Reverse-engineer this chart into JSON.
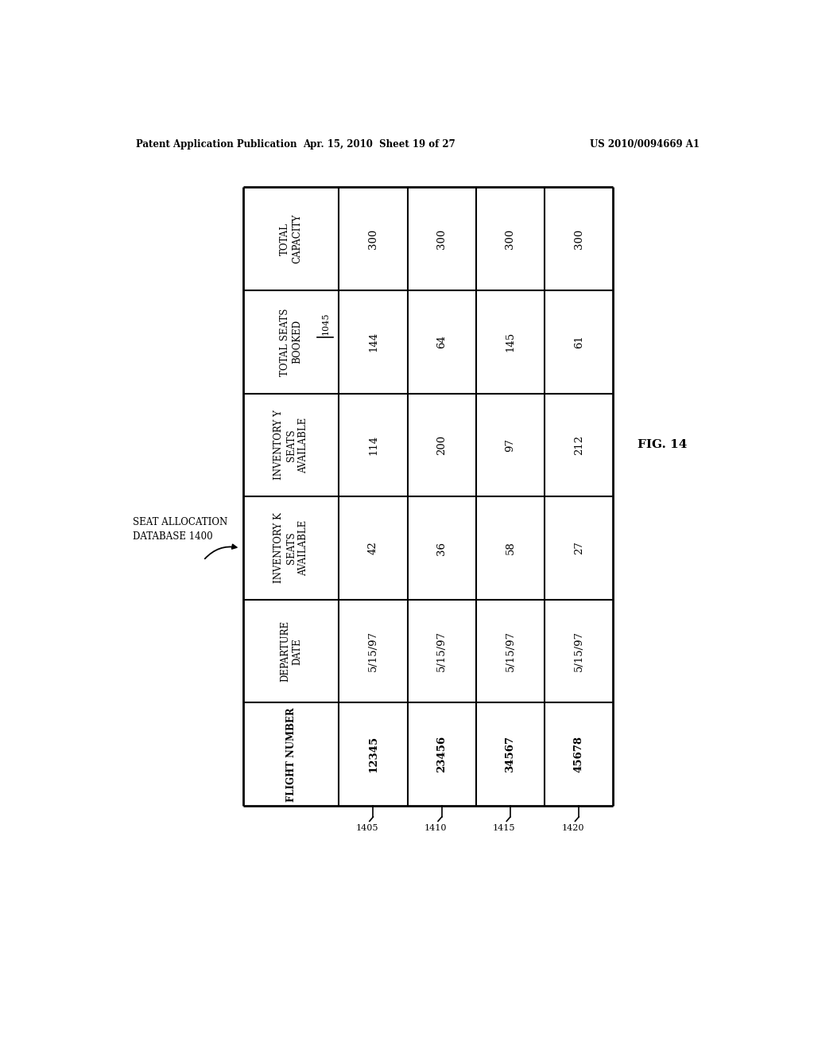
{
  "page_header_left": "Patent Application Publication",
  "page_header_mid": "Apr. 15, 2010  Sheet 19 of 27",
  "page_header_right": "US 2010/0094669 A1",
  "fig_label": "FIG. 14",
  "db_label_line1": "SEAT ALLOCATION",
  "db_label_line2": "DATABASE 1400",
  "row_headers": [
    "TOTAL\nCAPACITY",
    "TOTAL SEATS\nBOOKED",
    "INVENTORY Y\nSEATS\nAVAILABLE",
    "INVENTORY K\nSEATS\nAVAILABLE",
    "DEPARTURE\nDATE",
    "FLIGHT NUMBER"
  ],
  "header_extra_row": 1,
  "header_extra_text": "1045",
  "data_cols": [
    [
      "300",
      "144",
      "114",
      "42",
      "5/15/97",
      "12345"
    ],
    [
      "300",
      "64",
      "200",
      "36",
      "5/15/97",
      "23456"
    ],
    [
      "300",
      "145",
      "97",
      "58",
      "5/15/97",
      "34567"
    ],
    [
      "300",
      "61",
      "212",
      "27",
      "5/15/97",
      "45678"
    ]
  ],
  "col_labels": [
    "1405",
    "1410",
    "1415",
    "1420"
  ],
  "background_color": "#ffffff",
  "table_border_color": "#000000",
  "text_color": "#000000",
  "font_size_header": 8.5,
  "font_size_data": 9.5,
  "font_size_page": 8.5,
  "font_size_fig": 11
}
